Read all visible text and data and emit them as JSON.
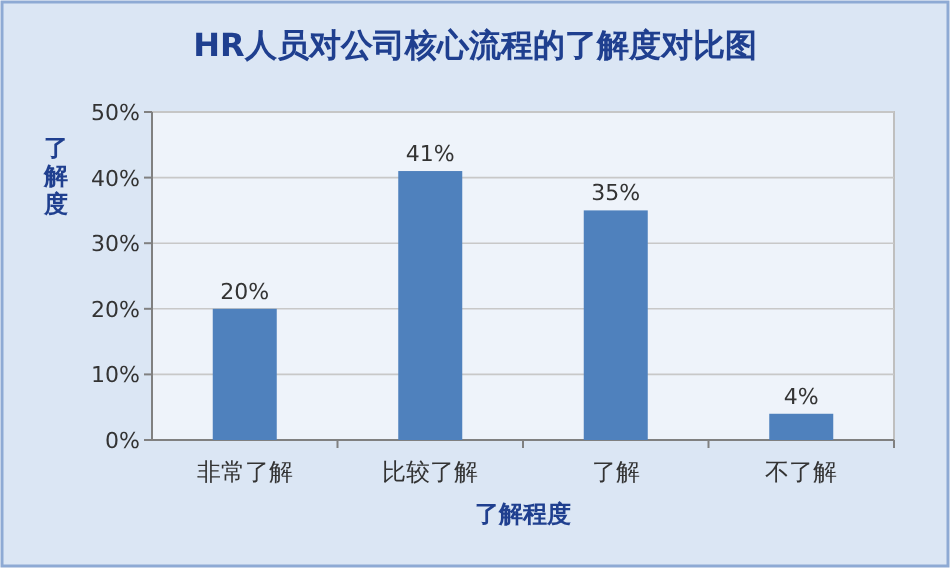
{
  "chart_data": {
    "type": "bar",
    "title": "HR人员对公司核心流程的了解度对比图",
    "xlabel": "了解程度",
    "ylabel": "了解度",
    "categories": [
      "非常了解",
      "比较了解",
      "了解",
      "不了解"
    ],
    "values": [
      20,
      41,
      35,
      4
    ],
    "color": "#4f81bd",
    "value_labels": [
      "20%",
      "41%",
      "35%",
      "4%"
    ],
    "ylim": [
      0,
      50
    ],
    "yticks": [
      {
        "value": 0,
        "label": "0%"
      },
      {
        "value": 10,
        "label": "10%"
      },
      {
        "value": 20,
        "label": "20%"
      },
      {
        "value": 30,
        "label": "30%"
      },
      {
        "value": 40,
        "label": "40%"
      },
      {
        "value": 50,
        "label": "50%"
      }
    ],
    "grid": "y"
  }
}
